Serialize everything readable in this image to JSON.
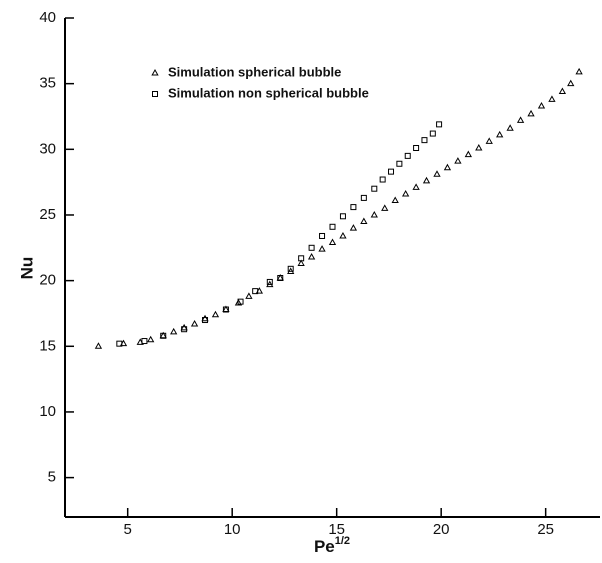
{
  "chart_data": {
    "type": "scatter",
    "x_label": "Pe",
    "x_label_sup": "1/2",
    "y_label": "Nu",
    "xlim": [
      2,
      27.6
    ],
    "ylim": [
      2,
      40
    ],
    "xticks": [
      5,
      10,
      15,
      20,
      25
    ],
    "yticks": [
      5,
      10,
      15,
      20,
      25,
      30,
      35,
      40
    ],
    "series": [
      {
        "name": "Simulation spherical bubble",
        "marker": "triangle",
        "color": "#000000",
        "x": [
          3.6,
          4.8,
          5.6,
          6.1,
          6.7,
          7.2,
          7.7,
          8.2,
          8.7,
          9.2,
          9.7,
          10.3,
          10.8,
          11.3,
          11.8,
          12.3,
          12.8,
          13.3,
          13.8,
          14.3,
          14.8,
          15.3,
          15.8,
          16.3,
          16.8,
          17.3,
          17.8,
          18.3,
          18.8,
          19.3,
          19.8,
          20.3,
          20.8,
          21.3,
          21.8,
          22.3,
          22.8,
          23.3,
          23.8,
          24.3,
          24.8,
          25.3,
          25.8,
          26.2,
          26.6
        ],
        "values": [
          15.0,
          15.2,
          15.3,
          15.5,
          15.8,
          16.1,
          16.4,
          16.7,
          17.1,
          17.4,
          17.8,
          18.3,
          18.8,
          19.2,
          19.7,
          20.2,
          20.7,
          21.3,
          21.8,
          22.4,
          22.9,
          23.4,
          24.0,
          24.5,
          25.0,
          25.5,
          26.1,
          26.6,
          27.1,
          27.6,
          28.1,
          28.6,
          29.1,
          29.6,
          30.1,
          30.6,
          31.1,
          31.6,
          32.2,
          32.7,
          33.3,
          33.8,
          34.4,
          35.0,
          35.9
        ]
      },
      {
        "name": "Simulation non spherical bubble",
        "marker": "square",
        "color": "#000000",
        "x": [
          4.6,
          5.8,
          6.7,
          7.7,
          8.7,
          9.7,
          10.4,
          11.1,
          11.8,
          12.3,
          12.8,
          13.3,
          13.8,
          14.3,
          14.8,
          15.3,
          15.8,
          16.3,
          16.8,
          17.2,
          17.6,
          18.0,
          18.4,
          18.8,
          19.2,
          19.6,
          19.9
        ],
        "values": [
          15.2,
          15.4,
          15.8,
          16.3,
          17.0,
          17.8,
          18.4,
          19.2,
          19.9,
          20.2,
          20.9,
          21.7,
          22.5,
          23.4,
          24.1,
          24.9,
          25.6,
          26.3,
          27.0,
          27.7,
          28.3,
          28.9,
          29.5,
          30.1,
          30.7,
          31.2,
          31.9
        ]
      }
    ]
  }
}
